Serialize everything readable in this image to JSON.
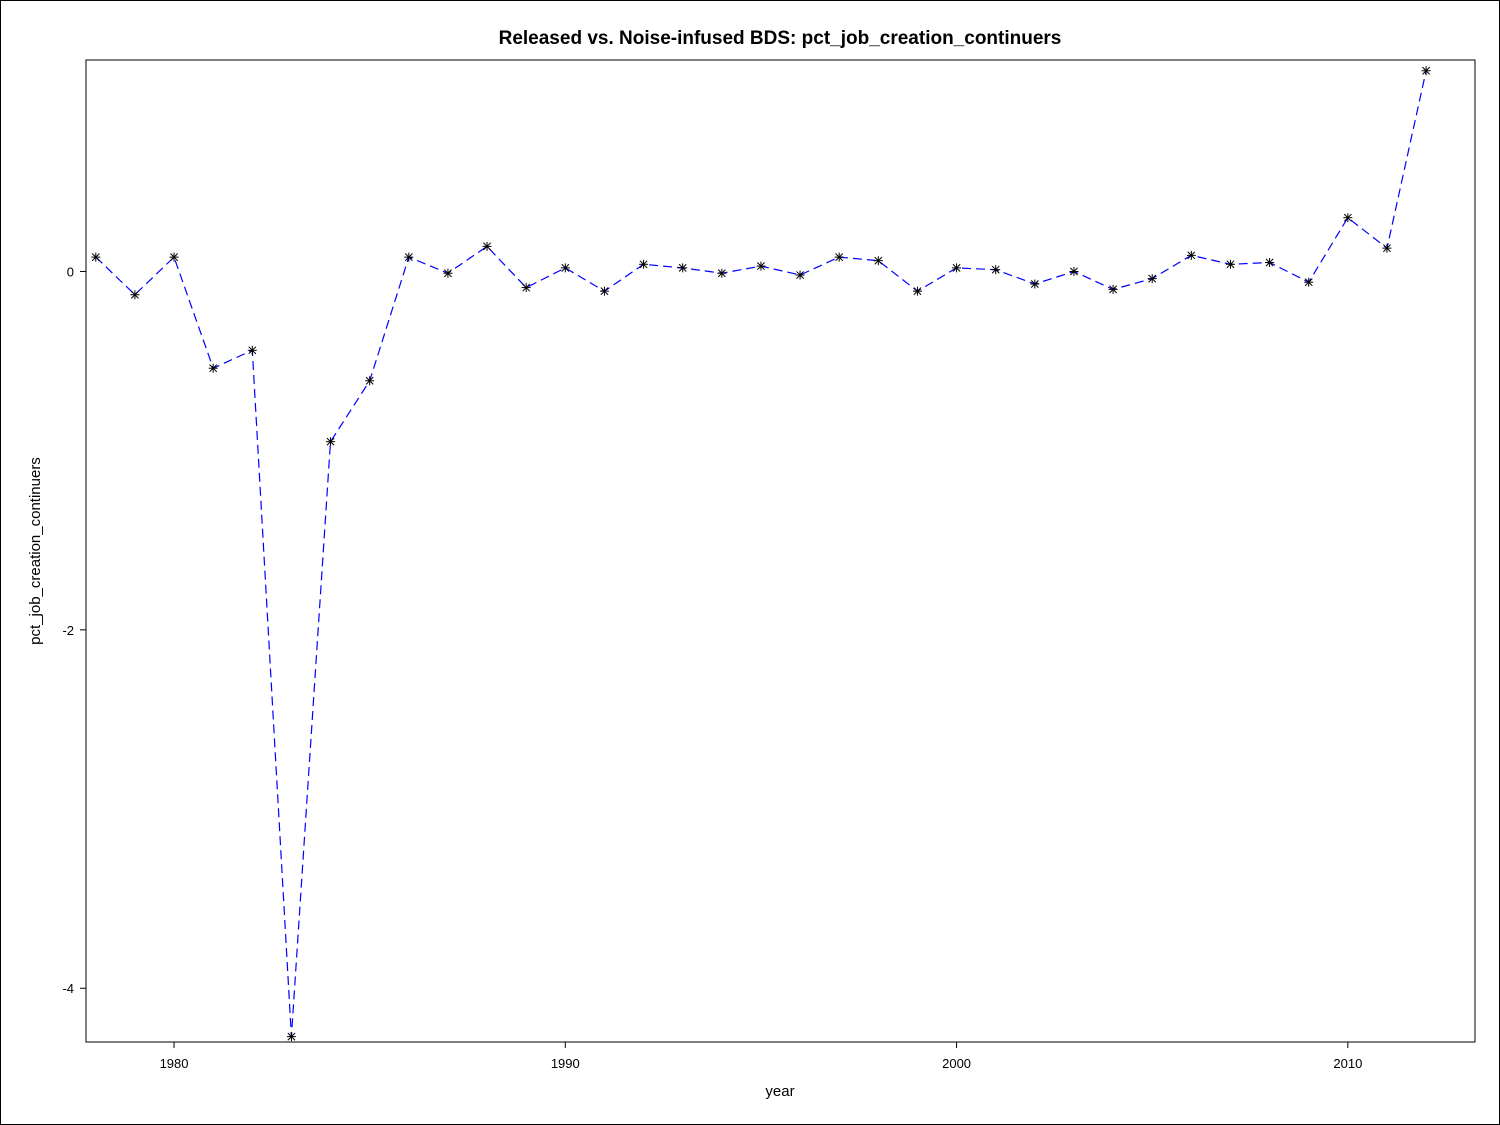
{
  "chart_data": {
    "type": "line",
    "title": "Released vs. Noise-infused BDS: pct_job_creation_continuers",
    "xlabel": "year",
    "ylabel": "pct_job_creation_continuers",
    "xlim": [
      1977.75,
      2013.25
    ],
    "ylim": [
      -4.3,
      1.18
    ],
    "xticks": [
      1980,
      1990,
      2000,
      2010
    ],
    "yticks": [
      0,
      -2,
      -4
    ],
    "grid": false,
    "legend": "none",
    "line_color": "#0000ff",
    "line_style": "dashed",
    "marker": "asterisk",
    "marker_color": "#000000",
    "series": [
      {
        "x": [
          1978,
          1979,
          1980,
          1981,
          1982,
          1983,
          1984,
          1985,
          1986,
          1987,
          1988,
          1989,
          1990,
          1991,
          1992,
          1993,
          1994,
          1995,
          1996,
          1997,
          1998,
          1999,
          2000,
          2001,
          2002,
          2003,
          2004,
          2005,
          2006,
          2007,
          2008,
          2009,
          2010,
          2011,
          2012
        ],
        "y": [
          0.08,
          -0.13,
          0.08,
          -0.54,
          -0.44,
          -4.27,
          -0.95,
          -0.61,
          0.08,
          -0.01,
          0.14,
          -0.09,
          0.02,
          -0.11,
          0.04,
          0.02,
          -0.01,
          0.03,
          -0.02,
          0.08,
          0.06,
          -0.11,
          0.02,
          0.01,
          -0.07,
          0.0,
          -0.1,
          -0.04,
          0.09,
          0.04,
          0.05,
          -0.06,
          0.3,
          0.13,
          1.12
        ]
      }
    ]
  }
}
